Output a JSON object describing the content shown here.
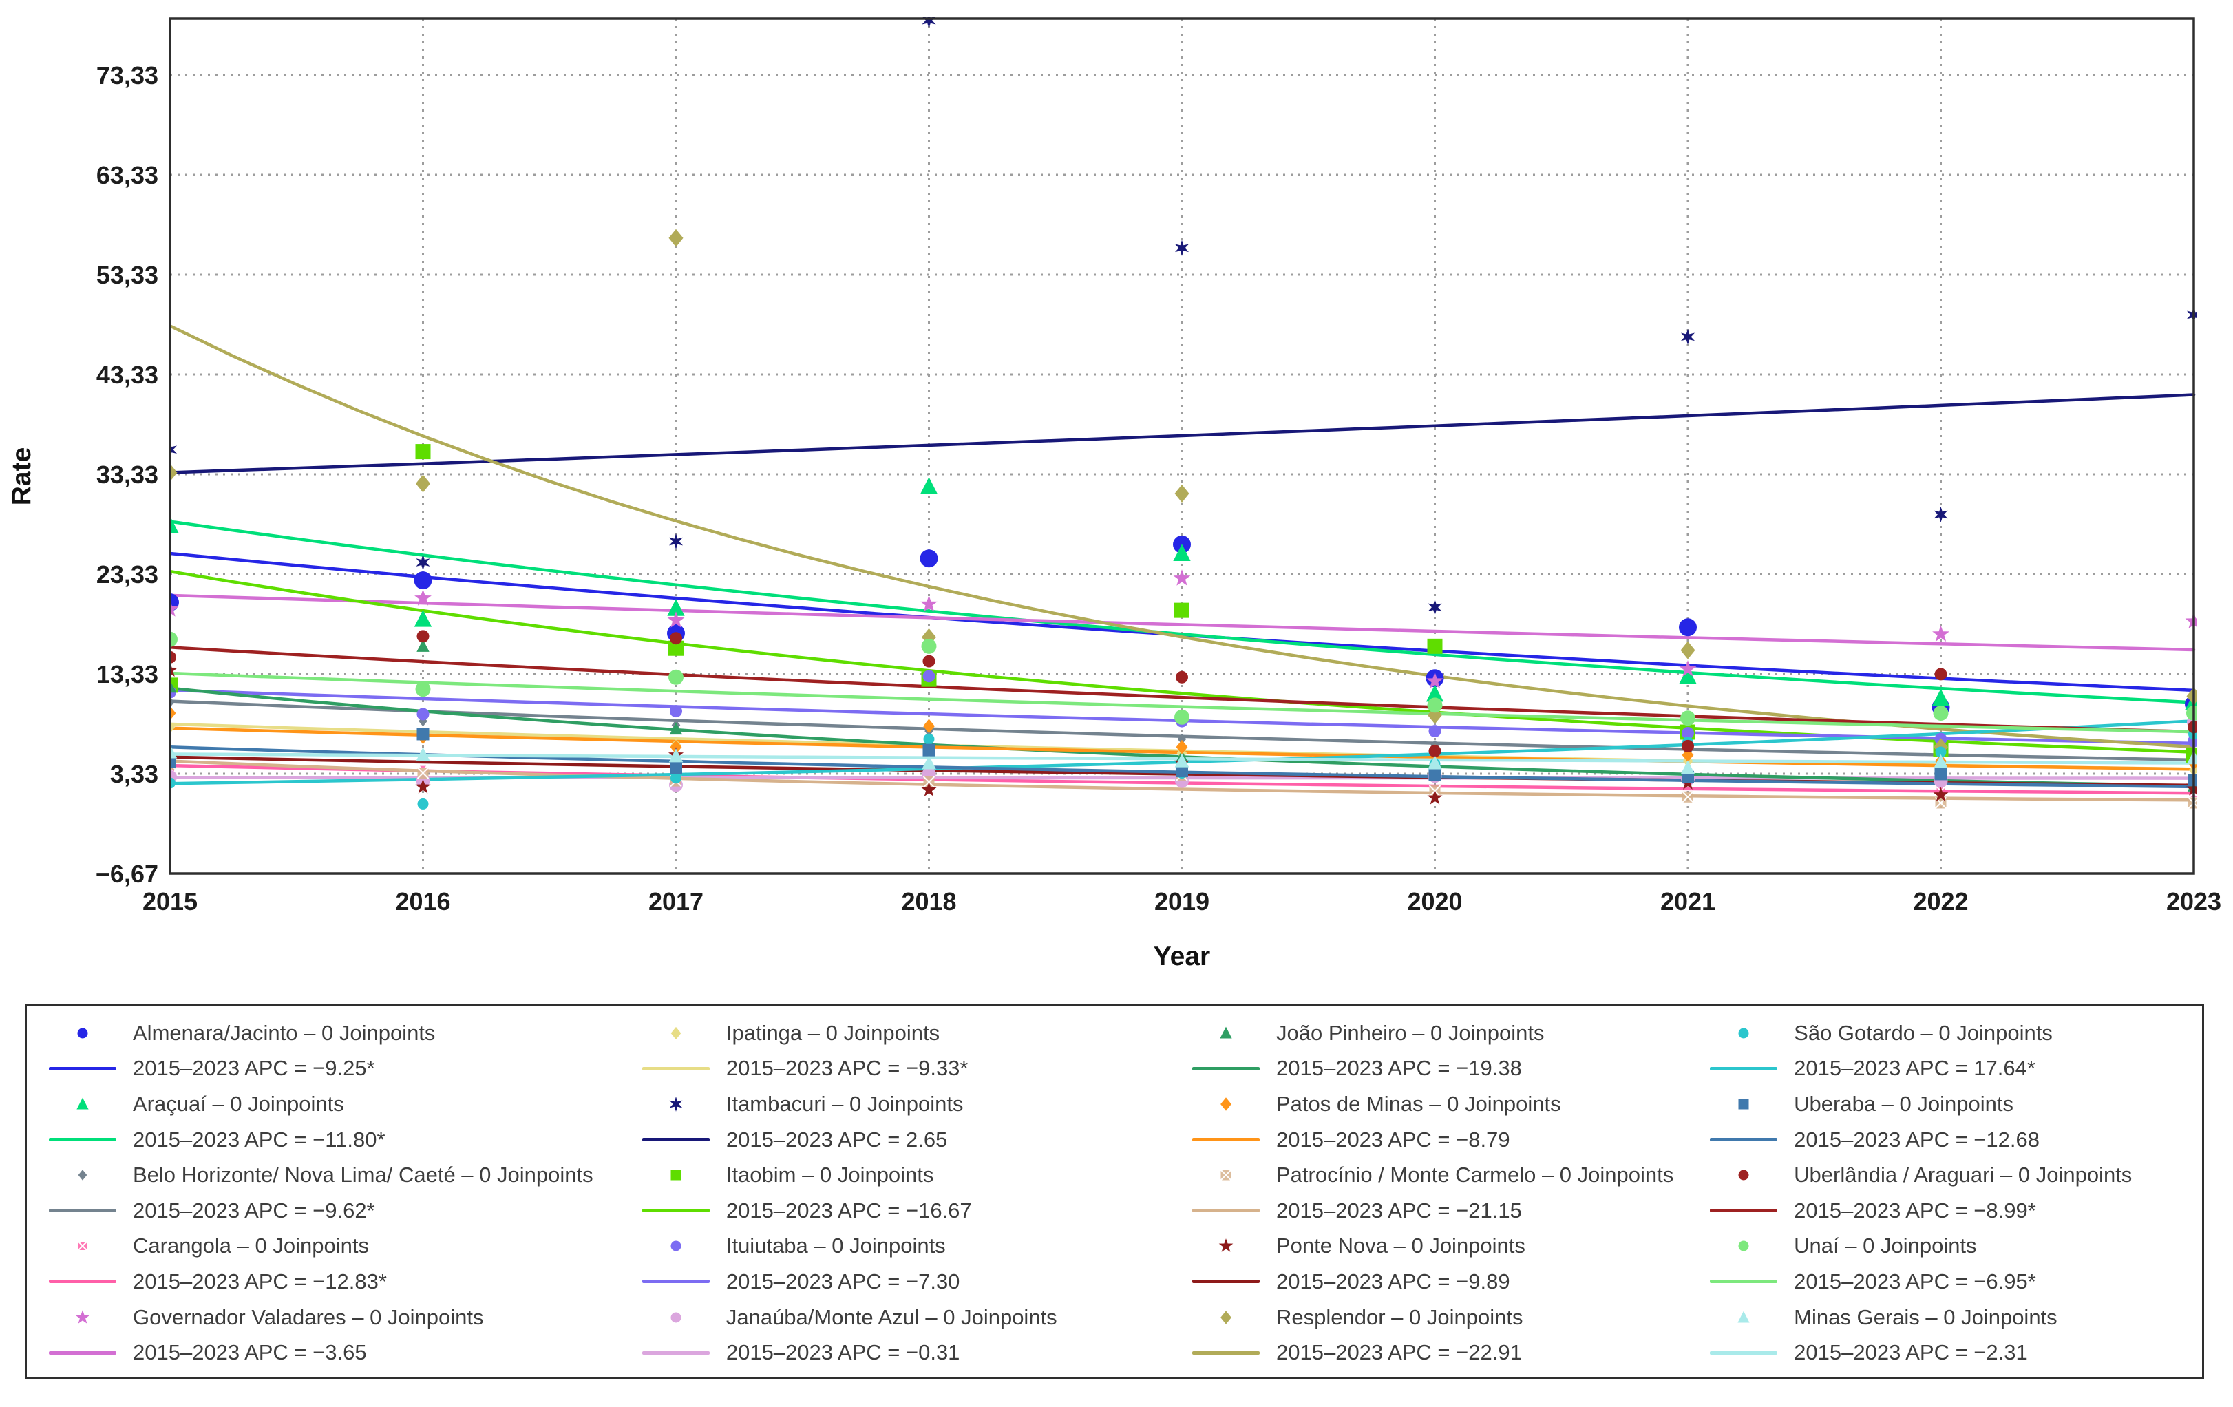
{
  "chart_data": {
    "type": "line",
    "title": "",
    "xlabel": "Year",
    "ylabel": "Rate",
    "x": [
      2015,
      2016,
      2017,
      2018,
      2019,
      2020,
      2021,
      2022,
      2023
    ],
    "x_tick_labels": [
      "2015",
      "2016",
      "2017",
      "2018",
      "2019",
      "2020",
      "2021",
      "2022",
      "2023"
    ],
    "y_ticks": [
      73.33,
      63.33,
      53.33,
      43.33,
      33.33,
      23.33,
      13.33,
      3.33,
      -6.67
    ],
    "y_tick_labels": [
      "73,33",
      "63,33",
      "53,33",
      "43,33",
      "33,33",
      "23,33",
      "13,33",
      "3,33",
      "−6,67"
    ],
    "ylim": [
      -6.67,
      79.0
    ],
    "grid": "dotted",
    "legend_position": "bottom",
    "series": [
      {
        "name": "Almenara/Jacinto",
        "legend_name": "Almenara/Jacinto – 0 Joinpoints",
        "legend_apc": "2015–2023 APC = −9.25*",
        "apc": -9.25,
        "model_start": 25.4,
        "color": "#2626e6",
        "marker": "circle",
        "size": 13,
        "observed": [
          20.5,
          22.7,
          17.4,
          24.9,
          26.3,
          12.9,
          18.0,
          10.0,
          10.3
        ]
      },
      {
        "name": "Araçuaí",
        "legend_name": "Araçuaí – 0 Joinpoints",
        "legend_apc": "2015–2023 APC = −11.80*",
        "apc": -11.8,
        "model_start": 28.6,
        "color": "#00df7a",
        "marker": "triangle",
        "size": 11,
        "observed": [
          28.2,
          18.8,
          19.9,
          32.1,
          25.4,
          11.3,
          13.1,
          10.9,
          10.5
        ]
      },
      {
        "name": "Belo Horizonte/ Nova Lima/ Caeté",
        "legend_name": "Belo Horizonte/ Nova Lima/ Caeté – 0 Joinpoints",
        "legend_apc": "2015–2023 APC = −9.62*",
        "apc": -9.62,
        "model_start": 10.6,
        "color": "#74838f",
        "marker": "diamond",
        "size": 6,
        "observed": [
          10.5,
          8.6,
          8.2,
          7.6,
          6.8,
          6.2,
          5.6,
          5.2,
          4.8
        ]
      },
      {
        "name": "Carangola",
        "legend_name": "Carangola – 0 Joinpoints",
        "legend_apc": "2015–2023 APC = −12.83*",
        "apc": -12.83,
        "model_start": 4.15,
        "color": "#ff5fa8",
        "marker": "xsquare",
        "size": 6,
        "observed": [
          3.9,
          3.7,
          3.4,
          3.2,
          3.0,
          3.3,
          2.7,
          1.6,
          1.4
        ]
      },
      {
        "name": "Governador Valadares",
        "legend_name": "Governador Valadares – 0 Joinpoints",
        "legend_apc": "2015–2023 APC = −3.65",
        "apc": -3.65,
        "model_start": 21.2,
        "color": "#d36fd3",
        "marker": "star5",
        "size": 9,
        "observed": [
          19.8,
          20.9,
          18.7,
          20.3,
          22.9,
          12.6,
          13.8,
          17.3,
          18.6
        ]
      },
      {
        "name": "Ipatinga",
        "legend_name": "Ipatinga – 0 Joinpoints",
        "legend_apc": "2015–2023 APC = −9.33*",
        "apc": -9.33,
        "model_start": 8.3,
        "color": "#e7dd86",
        "marker": "diamond",
        "size": 7,
        "observed": [
          8.0,
          7.4,
          6.2,
          6.6,
          5.4,
          4.4,
          4.6,
          4.0,
          3.7
        ]
      },
      {
        "name": "Itambacuri",
        "legend_name": "Itambacuri – 0 Joinpoints",
        "legend_apc": "2015–2023 APC = 2.65",
        "apc": 2.65,
        "model_start": 33.5,
        "color": "#181878",
        "marker": "star6",
        "size": 8,
        "observed": [
          35.8,
          24.5,
          26.6,
          78.8,
          56.0,
          20.0,
          47.1,
          29.3,
          49.3
        ]
      },
      {
        "name": "Itaobim",
        "legend_name": "Itaobim – 0 Joinpoints",
        "legend_apc": "2015–2023 APC = −16.67",
        "apc": -16.67,
        "model_start": 23.6,
        "color": "#5fdd00",
        "marker": "square",
        "size": 11,
        "observed": [
          12.2,
          35.6,
          15.9,
          12.8,
          19.7,
          16.1,
          7.5,
          5.8,
          5.2
        ]
      },
      {
        "name": "Ituiutaba",
        "legend_name": "Ituiutaba – 0 Joinpoints",
        "legend_apc": "2015–2023 APC = −7.30",
        "apc": -7.3,
        "model_start": 11.7,
        "color": "#7c6cf2",
        "marker": "circle",
        "size": 9,
        "observed": [
          11.5,
          9.3,
          9.6,
          13.1,
          8.6,
          7.6,
          7.4,
          6.8,
          6.6
        ]
      },
      {
        "name": "Janaúba/Monte Azul",
        "legend_name": "Janaúba/Monte Azul – 0 Joinpoints",
        "legend_apc": "2015–2023 APC = −0.31",
        "apc": -0.31,
        "model_start": 2.95,
        "color": "#dba6de",
        "marker": "circle",
        "size": 10,
        "observed": [
          3.0,
          2.6,
          2.2,
          3.3,
          2.6,
          3.1,
          2.8,
          2.6,
          8.5
        ]
      },
      {
        "name": "João Pinheiro",
        "legend_name": "João Pinheiro – 0 Joinpoints",
        "legend_apc": "2015–2023 APC = −19.38",
        "apc": -19.38,
        "model_start": 11.9,
        "color": "#2f9e63",
        "marker": "triangle",
        "size": 8,
        "observed": [
          12.0,
          16.1,
          7.8,
          6.3,
          5.0,
          4.0,
          3.2,
          6.2,
          2.1
        ]
      },
      {
        "name": "Patos de Minas",
        "legend_name": "Patos de Minas – 0 Joinpoints",
        "legend_apc": "2015–2023 APC = −8.79",
        "apc": -8.79,
        "model_start": 7.9,
        "color": "#ff9418",
        "marker": "diamond",
        "size": 8,
        "observed": [
          9.4,
          7.0,
          6.0,
          8.1,
          6.0,
          5.6,
          5.2,
          4.6,
          4.4
        ]
      },
      {
        "name": "Patrocínio / Monte Carmelo",
        "legend_name": "Patrocínio / Monte Carmelo – 0 Joinpoints",
        "legend_apc": "2015–2023 APC = −21.15",
        "apc": -21.15,
        "model_start": 4.6,
        "color": "#d6b28c",
        "marker": "xsquare",
        "size": 8,
        "observed": [
          4.3,
          3.4,
          2.6,
          2.5,
          3.2,
          1.6,
          1.0,
          0.4,
          0.4
        ]
      },
      {
        "name": "Ponte Nova",
        "legend_name": "Ponte Nova – 0 Joinpoints",
        "legend_apc": "2015–2023 APC = −9.89",
        "apc": -9.89,
        "model_start": 5.0,
        "color": "#8e1a1a",
        "marker": "star5",
        "size": 8,
        "observed": [
          13.7,
          2.0,
          5.2,
          1.7,
          4.4,
          0.9,
          2.4,
          1.2,
          1.8
        ]
      },
      {
        "name": "Resplendor",
        "legend_name": "Resplendor – 0 Joinpoints",
        "legend_apc": "2015–2023 APC = −22.91",
        "apc": -22.91,
        "model_start": 48.2,
        "color": "#b1ab58",
        "marker": "diamond",
        "size": 10,
        "observed": [
          33.5,
          32.4,
          57.0,
          17.0,
          31.4,
          9.2,
          15.7,
          6.0,
          11.1
        ]
      },
      {
        "name": "São Gotardo",
        "legend_name": "São Gotardo – 0 Joinpoints",
        "legend_apc": "2015–2023 APC = 17.64*",
        "apc": 17.64,
        "model_start": 2.35,
        "color": "#2bc6cd",
        "marker": "circle",
        "size": 8,
        "observed": [
          2.4,
          0.3,
          2.9,
          6.8,
          3.4,
          4.3,
          6.5,
          5.5,
          7.3
        ]
      },
      {
        "name": "Uberaba",
        "legend_name": "Uberaba – 0 Joinpoints",
        "legend_apc": "2015–2023 APC = −12.68",
        "apc": -12.68,
        "model_start": 6.0,
        "color": "#4079ad",
        "marker": "square",
        "size": 9,
        "observed": [
          4.5,
          7.3,
          3.9,
          5.7,
          3.6,
          3.2,
          3.0,
          3.3,
          2.7
        ]
      },
      {
        "name": "Uberlândia / Araguari",
        "legend_name": "Uberlândia / Araguari – 0 Joinpoints",
        "legend_apc": "2015–2023 APC = −8.99*",
        "apc": -8.99,
        "model_start": 16.0,
        "color": "#9e2121",
        "marker": "circle",
        "size": 9,
        "observed": [
          15.0,
          17.1,
          16.9,
          14.6,
          13.0,
          5.6,
          6.1,
          13.3,
          8.0
        ]
      },
      {
        "name": "Unaí",
        "legend_name": "Unaí – 0 Joinpoints",
        "legend_apc": "2015–2023 APC = −6.95*",
        "apc": -6.95,
        "model_start": 13.4,
        "color": "#7de87d",
        "marker": "circle",
        "size": 11,
        "observed": [
          16.8,
          11.8,
          13.0,
          16.1,
          9.0,
          10.2,
          8.9,
          9.4,
          9.4
        ]
      },
      {
        "name": "Minas Gerais",
        "legend_name": "Minas Gerais – 0 Joinpoints",
        "legend_apc": "2015–2023 APC = −2.31",
        "apc": -2.31,
        "model_start": 5.3,
        "color": "#a9eaea",
        "marker": "triangle",
        "size": 9,
        "observed": [
          5.5,
          5.2,
          5.1,
          4.4,
          4.6,
          4.4,
          3.9,
          4.5,
          4.9
        ]
      }
    ]
  }
}
